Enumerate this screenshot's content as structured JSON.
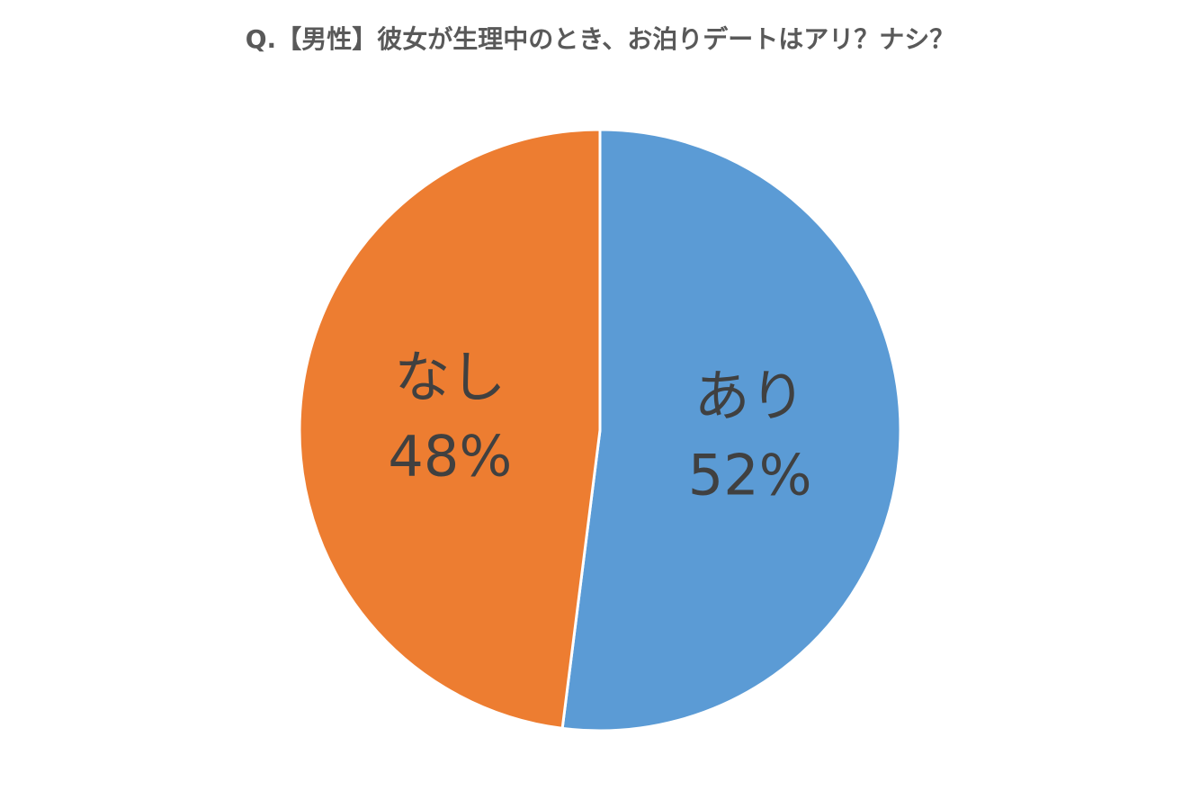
{
  "chart_data": {
    "type": "pie",
    "title": "Q.【男性】彼女が生理中のとき、お泊りデートはアリ？ナシ？",
    "categories": [
      "あり",
      "なし"
    ],
    "values": [
      52,
      48
    ],
    "value_labels": [
      "52%",
      "48%"
    ],
    "colors": [
      "#5b9bd5",
      "#ed7d31"
    ]
  }
}
